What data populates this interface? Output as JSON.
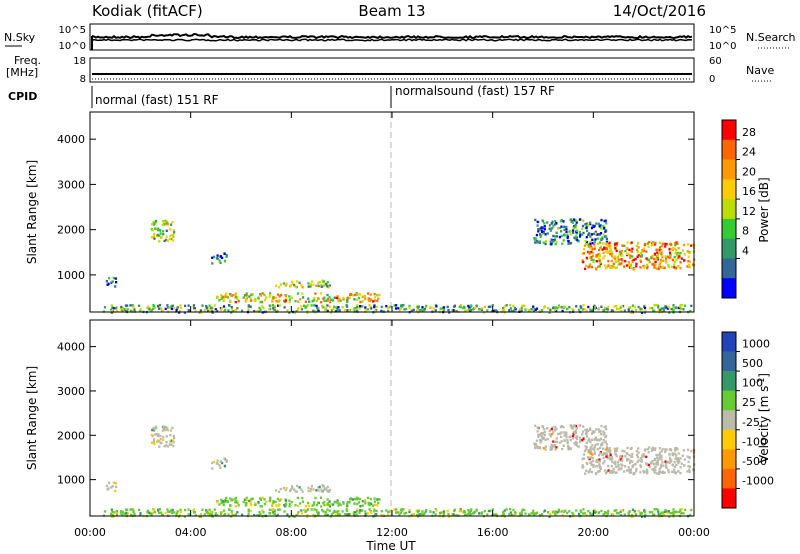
{
  "header": {
    "station": "Kodiak (fitACF)",
    "beam": "Beam 13",
    "date": "14/Oct/2016"
  },
  "top_panels": {
    "nsky_label": "N.Sky",
    "nsky_ticks": [
      "10^5",
      "10^0"
    ],
    "nsearch_label": "N.Search",
    "nsearch_ticks": [
      "10^5",
      "10^0"
    ],
    "freq_label_1": "Freq.",
    "freq_label_2": "[MHz]",
    "freq_ticks": [
      "18",
      "8"
    ],
    "nave_label": "Nave",
    "nave_ticks": [
      "60",
      "0"
    ],
    "cpid_label": "CPID",
    "cpid_segments": [
      "normal (fast) 151 RF",
      "normalsound (fast) 157 RF"
    ]
  },
  "chart_data": [
    {
      "type": "heatmap",
      "quantity": "power",
      "ylabel": "Slant Range [km]",
      "ylim": [
        180,
        4600
      ],
      "yticks": [
        "4000",
        "3000",
        "2000",
        "1000"
      ],
      "xlabel": "Time UT",
      "xlim_hours": [
        0,
        24
      ],
      "xticks": [
        "00:00",
        "04:00",
        "08:00",
        "12:00",
        "16:00",
        "20:00",
        "00:00"
      ],
      "colorbar_label": "Power [dB]",
      "colorbar_ticks": [
        "28",
        "24",
        "20",
        "16",
        "12",
        "8",
        "4"
      ],
      "colorbar_colors": [
        "#ff0000",
        "#ff6600",
        "#ff9900",
        "#ffcc00",
        "#bbdd00",
        "#33cc33",
        "#339966",
        "#336699",
        "#0000ff"
      ],
      "regions": [
        {
          "t": [
            0.6,
            1.0
          ],
          "r": [
            760,
            960
          ],
          "level": 0.2
        },
        {
          "t": [
            2.4,
            3.3
          ],
          "r": [
            1750,
            2220
          ],
          "level": 0.45
        },
        {
          "t": [
            5.0,
            11.5
          ],
          "r": [
            420,
            620
          ],
          "level": 0.6
        },
        {
          "t": [
            7.3,
            9.5
          ],
          "r": [
            750,
            900
          ],
          "level": 0.45
        },
        {
          "t": [
            0.5,
            24.0
          ],
          "r": [
            190,
            360
          ],
          "level": 0.35
        },
        {
          "t": [
            17.6,
            20.5
          ],
          "r": [
            1700,
            2250
          ],
          "level": 0.2
        },
        {
          "t": [
            19.5,
            24.0
          ],
          "r": [
            1150,
            1750
          ],
          "level": 0.7
        },
        {
          "t": [
            4.8,
            5.4
          ],
          "r": [
            1280,
            1500
          ],
          "level": 0.2
        }
      ]
    },
    {
      "type": "heatmap",
      "quantity": "velocity",
      "ylabel": "Slant Range [km]",
      "ylim": [
        180,
        4600
      ],
      "yticks": [
        "4000",
        "3000",
        "2000",
        "1000"
      ],
      "xlabel": "Time UT",
      "xticks": [
        "00:00",
        "04:00",
        "08:00",
        "12:00",
        "16:00",
        "20:00",
        "00:00"
      ],
      "colorbar_label": "Velocity [m s-1]",
      "colorbar_ticks": [
        "1000",
        "500",
        "100",
        "25",
        "-25",
        "-100",
        "-500",
        "-1000"
      ],
      "colorbar_colors": [
        "#2244bb",
        "#336699",
        "#339966",
        "#66cc33",
        "#bbbbaa",
        "#ffcc00",
        "#ff9900",
        "#ff6600",
        "#ff0000"
      ]
    }
  ]
}
